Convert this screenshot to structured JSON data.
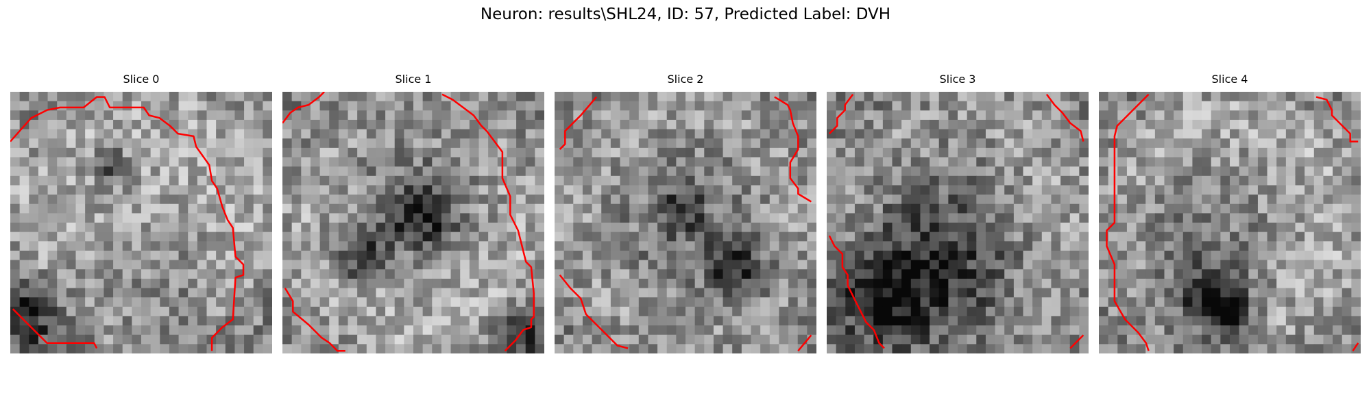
{
  "figure": {
    "title": "Neuron: results\\SHL24, ID: 57, Predicted Label: DVH"
  },
  "style": {
    "contour_color": "#ff0000",
    "colormap": "gray"
  },
  "panels": [
    {
      "title": "Slice 0",
      "contours": [
        [
          [
            0,
            0.19
          ],
          [
            0.08,
            0.1
          ],
          [
            0.14,
            0.07
          ],
          [
            0.19,
            0.06
          ],
          [
            0.28,
            0.06
          ],
          [
            0.33,
            0.02
          ],
          [
            0.36,
            0.02
          ],
          [
            0.38,
            0.06
          ],
          [
            0.51,
            0.06
          ],
          [
            0.53,
            0.09
          ],
          [
            0.57,
            0.1
          ],
          [
            0.61,
            0.13
          ],
          [
            0.64,
            0.16
          ],
          [
            0.7,
            0.17
          ],
          [
            0.71,
            0.21
          ],
          [
            0.76,
            0.28
          ],
          [
            0.77,
            0.34
          ],
          [
            0.79,
            0.37
          ],
          [
            0.81,
            0.44
          ],
          [
            0.83,
            0.49
          ],
          [
            0.85,
            0.52
          ],
          [
            0.86,
            0.63
          ],
          [
            0.89,
            0.66
          ],
          [
            0.89,
            0.7
          ],
          [
            0.86,
            0.71
          ],
          [
            0.85,
            0.87
          ],
          [
            0.81,
            0.9
          ],
          [
            0.77,
            0.94
          ],
          [
            0.77,
            0.99
          ]
        ],
        [
          [
            0.01,
            0.83
          ],
          [
            0.06,
            0.88
          ],
          [
            0.14,
            0.96
          ],
          [
            0.32,
            0.96
          ],
          [
            0.33,
            0.98
          ]
        ]
      ]
    },
    {
      "title": "Slice 1",
      "contours": [
        [
          [
            0,
            0.12
          ],
          [
            0.03,
            0.08
          ],
          [
            0.06,
            0.06
          ],
          [
            0.1,
            0.05
          ],
          [
            0.14,
            0.02
          ],
          [
            0.16,
            0
          ]
        ],
        [
          [
            0.61,
            0.01
          ],
          [
            0.65,
            0.03
          ],
          [
            0.69,
            0.06
          ],
          [
            0.73,
            0.09
          ],
          [
            0.76,
            0.13
          ],
          [
            0.78,
            0.15
          ],
          [
            0.84,
            0.23
          ],
          [
            0.84,
            0.33
          ],
          [
            0.87,
            0.4
          ],
          [
            0.87,
            0.47
          ],
          [
            0.9,
            0.53
          ],
          [
            0.93,
            0.65
          ],
          [
            0.95,
            0.67
          ],
          [
            0.96,
            0.77
          ],
          [
            0.96,
            0.86
          ],
          [
            0.95,
            0.87
          ],
          [
            0.95,
            0.9
          ],
          [
            0.92,
            0.91
          ],
          [
            0.89,
            0.95
          ],
          [
            0.85,
            0.99
          ]
        ],
        [
          [
            0.01,
            0.75
          ],
          [
            0.04,
            0.8
          ],
          [
            0.04,
            0.84
          ],
          [
            0.1,
            0.89
          ],
          [
            0.15,
            0.94
          ],
          [
            0.18,
            0.96
          ],
          [
            0.21,
            0.99
          ],
          [
            0.24,
            0.99
          ]
        ]
      ]
    },
    {
      "title": "Slice 2",
      "contours": [
        [
          [
            0.02,
            0.22
          ],
          [
            0.04,
            0.2
          ],
          [
            0.04,
            0.15
          ],
          [
            0.1,
            0.09
          ],
          [
            0.16,
            0.02
          ]
        ],
        [
          [
            0.84,
            0.02
          ],
          [
            0.89,
            0.05
          ],
          [
            0.9,
            0.07
          ],
          [
            0.91,
            0.12
          ],
          [
            0.93,
            0.17
          ],
          [
            0.93,
            0.22
          ],
          [
            0.9,
            0.27
          ],
          [
            0.9,
            0.33
          ],
          [
            0.93,
            0.37
          ],
          [
            0.93,
            0.39
          ],
          [
            0.98,
            0.42
          ]
        ],
        [
          [
            0.02,
            0.7
          ],
          [
            0.06,
            0.75
          ],
          [
            0.1,
            0.79
          ],
          [
            0.12,
            0.85
          ],
          [
            0.19,
            0.92
          ],
          [
            0.24,
            0.97
          ],
          [
            0.28,
            0.98
          ]
        ],
        [
          [
            0.93,
            0.99
          ],
          [
            0.98,
            0.93
          ]
        ]
      ]
    },
    {
      "title": "Slice 3",
      "contours": [
        [
          [
            0.01,
            0.16
          ],
          [
            0.04,
            0.13
          ],
          [
            0.04,
            0.1
          ],
          [
            0.07,
            0.07
          ],
          [
            0.07,
            0.05
          ],
          [
            0.1,
            0.01
          ]
        ],
        [
          [
            0.84,
            0.01
          ],
          [
            0.87,
            0.05
          ],
          [
            0.9,
            0.08
          ],
          [
            0.93,
            0.12
          ],
          [
            0.97,
            0.15
          ],
          [
            0.98,
            0.19
          ]
        ],
        [
          [
            0.01,
            0.55
          ],
          [
            0.03,
            0.59
          ],
          [
            0.06,
            0.62
          ],
          [
            0.06,
            0.67
          ],
          [
            0.08,
            0.7
          ],
          [
            0.08,
            0.74
          ],
          [
            0.11,
            0.8
          ],
          [
            0.13,
            0.84
          ],
          [
            0.15,
            0.88
          ],
          [
            0.18,
            0.91
          ],
          [
            0.2,
            0.96
          ],
          [
            0.22,
            0.98
          ]
        ],
        [
          [
            0.93,
            0.98
          ],
          [
            0.98,
            0.93
          ]
        ]
      ]
    },
    {
      "title": "Slice 4",
      "contours": [
        [
          [
            0.19,
            0.01
          ],
          [
            0.14,
            0.06
          ],
          [
            0.1,
            0.1
          ],
          [
            0.07,
            0.13
          ],
          [
            0.06,
            0.17
          ],
          [
            0.06,
            0.5
          ],
          [
            0.03,
            0.53
          ],
          [
            0.03,
            0.59
          ],
          [
            0.06,
            0.66
          ],
          [
            0.06,
            0.8
          ],
          [
            0.1,
            0.87
          ],
          [
            0.15,
            0.92
          ],
          [
            0.18,
            0.96
          ],
          [
            0.19,
            0.99
          ]
        ],
        [
          [
            0.83,
            0.02
          ],
          [
            0.87,
            0.03
          ],
          [
            0.89,
            0.07
          ],
          [
            0.89,
            0.09
          ],
          [
            0.93,
            0.13
          ],
          [
            0.96,
            0.16
          ],
          [
            0.96,
            0.19
          ],
          [
            0.99,
            0.19
          ]
        ],
        [
          [
            0.97,
            0.99
          ],
          [
            0.99,
            0.96
          ]
        ]
      ]
    }
  ]
}
